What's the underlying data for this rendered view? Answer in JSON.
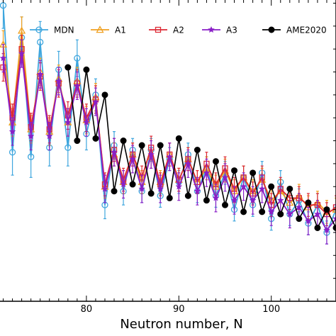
{
  "chart_data": {
    "type": "line",
    "title": "",
    "xlabel": "Neutron number, N",
    "ylabel": "",
    "xlim": [
      70.5,
      107
    ],
    "ylim": [
      -3,
      3.6
    ],
    "x_ticks": [
      80,
      90,
      100
    ],
    "grid": false,
    "legend_position": "top",
    "series": [
      {
        "name": "MDN",
        "color": "#3ea6de",
        "marker": "circle-open",
        "x": [
          71,
          72,
          73,
          74,
          75,
          76,
          77,
          78,
          79,
          80,
          81,
          82,
          83,
          84,
          85,
          86,
          87,
          88,
          89,
          90,
          91,
          92,
          93,
          94,
          95,
          96,
          97,
          98,
          99,
          100,
          101,
          102,
          103,
          104,
          105,
          106,
          107
        ],
        "y": [
          3.45,
          0.25,
          2.75,
          0.15,
          2.65,
          0.35,
          2.05,
          0.35,
          2.3,
          0.65,
          1.5,
          -0.9,
          0.4,
          -0.6,
          0.3,
          -0.6,
          0.3,
          -0.7,
          0.1,
          -0.4,
          0.2,
          -0.6,
          -0.1,
          -0.7,
          -0.2,
          -1.0,
          -0.3,
          -0.9,
          -0.2,
          -1.2,
          -0.4,
          -1.1,
          -0.8,
          -1.3,
          -0.9,
          -1.5,
          -1.0
        ],
        "err": [
          0.5,
          0.5,
          0.45,
          0.45,
          0.45,
          0.4,
          0.4,
          0.4,
          0.4,
          0.35,
          0.35,
          0.3,
          0.3,
          0.3,
          0.25,
          0.25,
          0.25,
          0.25,
          0.25,
          0.25,
          0.25,
          0.25,
          0.25,
          0.25,
          0.25,
          0.25,
          0.25,
          0.25,
          0.25,
          0.25,
          0.25,
          0.25,
          0.25,
          0.25,
          0.25,
          0.25,
          0.25
        ]
      },
      {
        "name": "A1",
        "color": "#f0a020",
        "marker": "triangle-open",
        "x": [
          71,
          72,
          73,
          74,
          75,
          76,
          77,
          78,
          79,
          80,
          81,
          82,
          83,
          84,
          85,
          86,
          87,
          88,
          89,
          90,
          91,
          92,
          93,
          94,
          95,
          96,
          97,
          98,
          99,
          100,
          101,
          102,
          103,
          104,
          105,
          106,
          107
        ],
        "y": [
          2.6,
          0.9,
          2.9,
          0.75,
          2.0,
          0.7,
          1.85,
          0.9,
          1.8,
          0.95,
          1.45,
          -0.5,
          0.2,
          -0.4,
          0.2,
          -0.4,
          0.15,
          -0.4,
          0.2,
          -0.35,
          0.1,
          -0.4,
          -0.1,
          -0.5,
          -0.15,
          -0.6,
          -0.3,
          -0.6,
          -0.35,
          -0.8,
          -0.6,
          -0.85,
          -0.7,
          -0.95,
          -0.85,
          -1.05,
          -1.0
        ],
        "err": [
          0.3,
          0.3,
          0.3,
          0.3,
          0.3,
          0.3,
          0.3,
          0.3,
          0.3,
          0.3,
          0.3,
          0.25,
          0.25,
          0.25,
          0.25,
          0.25,
          0.25,
          0.25,
          0.25,
          0.25,
          0.25,
          0.25,
          0.25,
          0.25,
          0.25,
          0.25,
          0.25,
          0.25,
          0.25,
          0.25,
          0.25,
          0.25,
          0.25,
          0.25,
          0.25,
          0.25,
          0.25
        ]
      },
      {
        "name": "A2",
        "color": "#dd2a35",
        "marker": "square-open",
        "x": [
          71,
          72,
          73,
          74,
          75,
          76,
          77,
          78,
          79,
          80,
          81,
          82,
          83,
          84,
          85,
          86,
          87,
          88,
          89,
          90,
          91,
          92,
          93,
          94,
          95,
          96,
          97,
          98,
          99,
          100,
          101,
          102,
          103,
          104,
          105,
          106,
          107
        ],
        "y": [
          2.1,
          1.0,
          2.5,
          0.8,
          1.9,
          0.75,
          1.75,
          1.05,
          1.75,
          1.0,
          1.4,
          -0.45,
          0.3,
          -0.35,
          0.2,
          -0.3,
          0.35,
          -0.45,
          0.2,
          -0.35,
          0.1,
          -0.4,
          0.0,
          -0.45,
          -0.1,
          -0.55,
          -0.3,
          -0.65,
          -0.3,
          -0.9,
          -0.55,
          -0.75,
          -0.75,
          -0.9,
          -0.9,
          -1.1,
          -0.95
        ],
        "err": [
          0.3,
          0.3,
          0.3,
          0.3,
          0.3,
          0.3,
          0.3,
          0.3,
          0.3,
          0.3,
          0.3,
          0.25,
          0.25,
          0.25,
          0.25,
          0.25,
          0.25,
          0.25,
          0.25,
          0.25,
          0.25,
          0.25,
          0.25,
          0.25,
          0.25,
          0.25,
          0.25,
          0.25,
          0.25,
          0.25,
          0.25,
          0.25,
          0.25,
          0.25,
          0.25,
          0.25,
          0.25
        ]
      },
      {
        "name": "A3",
        "color": "#8a1fc7",
        "marker": "star",
        "x": [
          71,
          72,
          73,
          74,
          75,
          76,
          77,
          78,
          79,
          80,
          81,
          82,
          83,
          84,
          85,
          86,
          87,
          88,
          89,
          90,
          91,
          92,
          93,
          94,
          95,
          96,
          97,
          98,
          99,
          100,
          101,
          102,
          103,
          104,
          105,
          106,
          107
        ],
        "y": [
          2.3,
          0.7,
          2.4,
          0.6,
          1.95,
          0.6,
          1.8,
          0.9,
          1.7,
          0.9,
          1.35,
          -0.55,
          0.25,
          -0.45,
          0.1,
          -0.55,
          0.2,
          -0.55,
          0.15,
          -0.5,
          0.0,
          -0.6,
          -0.2,
          -0.75,
          -0.3,
          -0.8,
          -0.5,
          -0.8,
          -0.55,
          -1.05,
          -0.8,
          -1.1,
          -0.95,
          -1.25,
          -1.1,
          -1.45,
          -1.2
        ],
        "err": [
          0.3,
          0.3,
          0.3,
          0.3,
          0.3,
          0.3,
          0.3,
          0.3,
          0.3,
          0.3,
          0.3,
          0.3,
          0.3,
          0.3,
          0.3,
          0.3,
          0.3,
          0.3,
          0.3,
          0.3,
          0.3,
          0.3,
          0.3,
          0.3,
          0.3,
          0.3,
          0.3,
          0.3,
          0.3,
          0.3,
          0.3,
          0.3,
          0.3,
          0.3,
          0.3,
          0.3,
          0.3
        ]
      },
      {
        "name": "AME2020",
        "color": "#000000",
        "marker": "circle-filled",
        "x": [
          78,
          79,
          80,
          81,
          82,
          83,
          84,
          85,
          86,
          87,
          88,
          89,
          90,
          91,
          92,
          93,
          94,
          95,
          96,
          97,
          98,
          99,
          100,
          101,
          102,
          103,
          104,
          105,
          106,
          107
        ],
        "y": [
          2.1,
          0.5,
          2.05,
          0.55,
          1.5,
          -0.6,
          0.5,
          -0.45,
          0.4,
          -0.65,
          0.4,
          -0.75,
          0.55,
          -0.7,
          0.3,
          -0.8,
          0.05,
          -0.9,
          -0.15,
          -1.05,
          -0.2,
          -1.05,
          -0.5,
          -1.1,
          -0.55,
          -1.2,
          -0.85,
          -1.4,
          -1.0,
          -1.4
        ],
        "err": [
          0.05,
          0.05,
          0.05,
          0.05,
          0.05,
          0.05,
          0.05,
          0.05,
          0.05,
          0.05,
          0.05,
          0.05,
          0.05,
          0.05,
          0.05,
          0.05,
          0.05,
          0.05,
          0.05,
          0.05,
          0.05,
          0.05,
          0.05,
          0.05,
          0.05,
          0.05,
          0.05,
          0.05,
          0.05,
          0.05
        ]
      }
    ]
  }
}
